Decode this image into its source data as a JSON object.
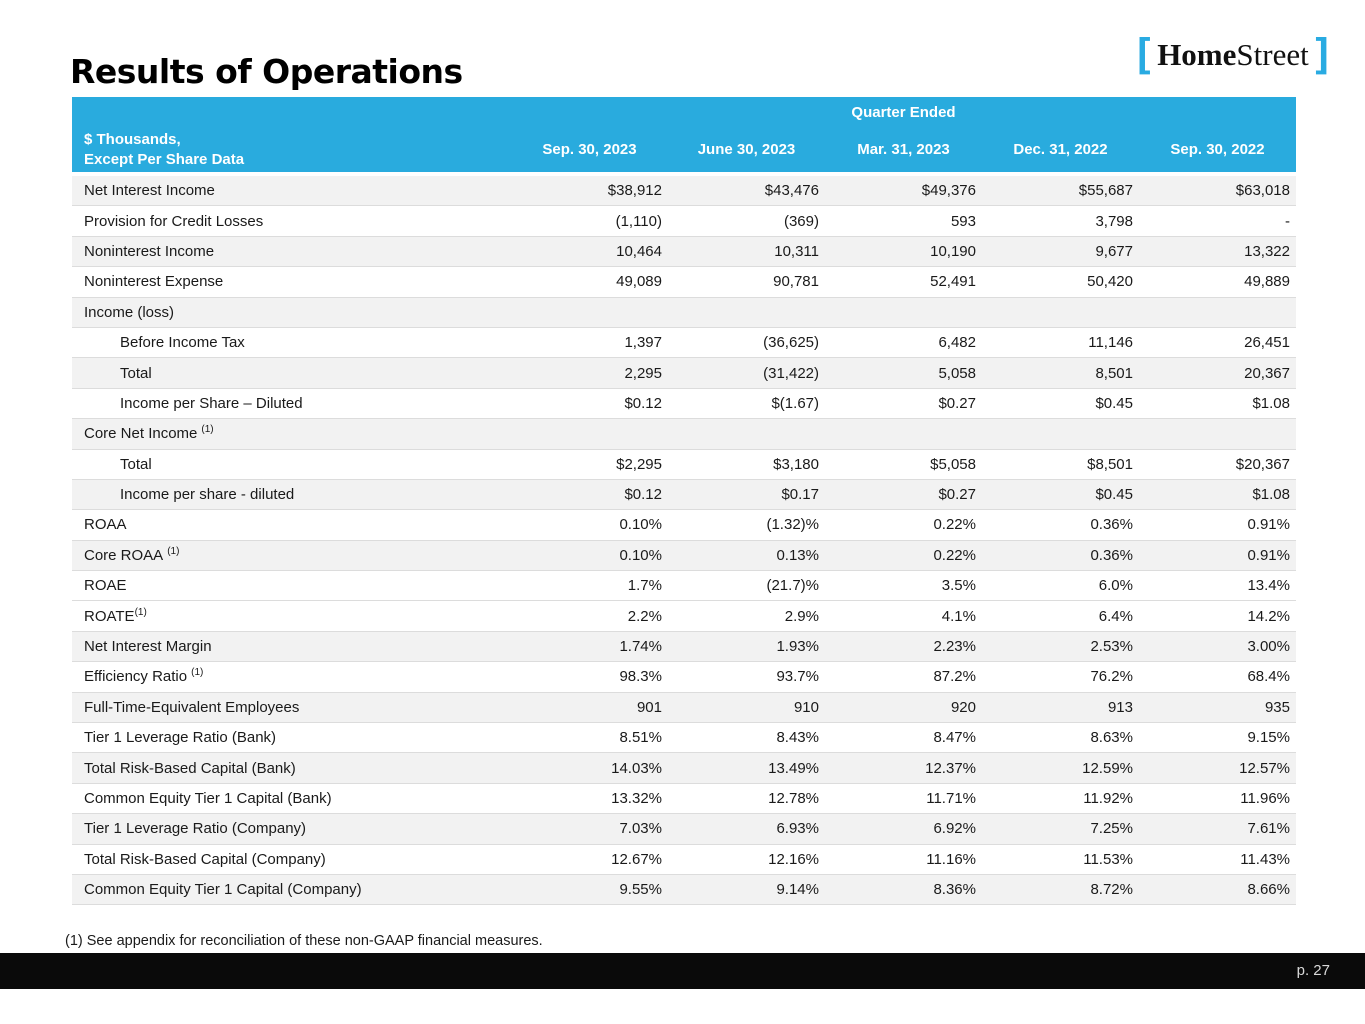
{
  "slide": {
    "title": "Results of Operations",
    "footnote": "(1) See appendix for reconciliation of these non-GAAP financial measures.",
    "page_number": "p. 27"
  },
  "logo": {
    "bracket_left": "[",
    "word_bold": "Home",
    "word_regular": "Street",
    "bracket_right": "]",
    "bracket_color": "#29ABE2"
  },
  "colors": {
    "header_bg": "#29ABDE",
    "accent": "#29ABE2",
    "row_shaded": "#F2F2F2",
    "row_divider": "#DCDCDC",
    "footer_bg": "#0A0A0A"
  },
  "table": {
    "group_header": "Quarter Ended",
    "corner_label_line1": "$ Thousands,",
    "corner_label_line2": "Except Per Share Data",
    "columns": [
      "Sep. 30, 2023",
      "June 30, 2023",
      "Mar. 31, 2023",
      "Dec. 31, 2022",
      "Sep. 30, 2022"
    ],
    "rows": [
      {
        "label": "Net Interest Income",
        "shaded": true,
        "values": [
          "$38,912",
          "$43,476",
          "$49,376",
          "$55,687",
          "$63,018"
        ]
      },
      {
        "label": "Provision for Credit Losses",
        "shaded": false,
        "values": [
          "(1,110)",
          "(369)",
          "593",
          "3,798",
          "-"
        ]
      },
      {
        "label": "Noninterest Income",
        "shaded": true,
        "values": [
          "10,464",
          "10,311",
          "10,190",
          "9,677",
          "13,322"
        ]
      },
      {
        "label": "Noninterest Expense",
        "shaded": false,
        "values": [
          "49,089",
          "90,781",
          "52,491",
          "50,420",
          "49,889"
        ]
      },
      {
        "label": "Income (loss)",
        "shaded": true,
        "section": true,
        "values": []
      },
      {
        "label": "Before Income Tax",
        "indent": true,
        "shaded": false,
        "values": [
          "1,397",
          "(36,625)",
          "6,482",
          "11,146",
          "26,451"
        ]
      },
      {
        "label": "Total",
        "indent": true,
        "shaded": true,
        "values": [
          "2,295",
          "(31,422)",
          "5,058",
          "8,501",
          "20,367"
        ]
      },
      {
        "label": "Income per Share – Diluted",
        "indent": true,
        "shaded": false,
        "values": [
          "$0.12",
          "$(1.67)",
          "$0.27",
          "$0.45",
          "$1.08"
        ]
      },
      {
        "label": "Core Net Income",
        "sup": "(1)",
        "sup_space": true,
        "shaded": true,
        "section": true,
        "values": []
      },
      {
        "label": "Total",
        "indent": true,
        "shaded": false,
        "values": [
          "$2,295",
          "$3,180",
          "$5,058",
          "$8,501",
          "$20,367"
        ]
      },
      {
        "label": "Income per share - diluted",
        "indent": true,
        "shaded": true,
        "values": [
          "$0.12",
          "$0.17",
          "$0.27",
          "$0.45",
          "$1.08"
        ]
      },
      {
        "label": "ROAA",
        "shaded": false,
        "values": [
          "0.10%",
          "(1.32)%",
          "0.22%",
          "0.36%",
          "0.91%"
        ]
      },
      {
        "label": "Core ROAA",
        "sup": "(1)",
        "sup_space": true,
        "shaded": true,
        "values": [
          "0.10%",
          "0.13%",
          "0.22%",
          "0.36%",
          "0.91%"
        ]
      },
      {
        "label": "ROAE",
        "shaded": false,
        "values": [
          "1.7%",
          "(21.7)%",
          "3.5%",
          "6.0%",
          "13.4%"
        ]
      },
      {
        "label": "ROATE",
        "sup": "(1)",
        "sup_space": false,
        "shaded": false,
        "values": [
          "2.2%",
          "2.9%",
          "4.1%",
          "6.4%",
          "14.2%"
        ]
      },
      {
        "label": "Net Interest Margin",
        "shaded": true,
        "values": [
          "1.74%",
          "1.93%",
          "2.23%",
          "2.53%",
          "3.00%"
        ]
      },
      {
        "label": "Efficiency Ratio",
        "sup": "(1)",
        "sup_space": true,
        "shaded": false,
        "values": [
          "98.3%",
          "93.7%",
          "87.2%",
          "76.2%",
          "68.4%"
        ]
      },
      {
        "label": "Full-Time-Equivalent Employees",
        "shaded": true,
        "values": [
          "901",
          "910",
          "920",
          "913",
          "935"
        ]
      },
      {
        "label": "Tier 1 Leverage Ratio (Bank)",
        "shaded": false,
        "values": [
          "8.51%",
          "8.43%",
          "8.47%",
          "8.63%",
          "9.15%"
        ]
      },
      {
        "label": "Total Risk-Based Capital (Bank)",
        "shaded": true,
        "values": [
          "14.03%",
          "13.49%",
          "12.37%",
          "12.59%",
          "12.57%"
        ]
      },
      {
        "label": "Common Equity Tier 1 Capital (Bank)",
        "shaded": false,
        "values": [
          "13.32%",
          "12.78%",
          "11.71%",
          "11.92%",
          "11.96%"
        ]
      },
      {
        "label": "Tier 1 Leverage Ratio (Company)",
        "shaded": true,
        "values": [
          "7.03%",
          "6.93%",
          "6.92%",
          "7.25%",
          "7.61%"
        ]
      },
      {
        "label": "Total Risk-Based Capital (Company)",
        "shaded": false,
        "values": [
          "12.67%",
          "12.16%",
          "11.16%",
          "11.53%",
          "11.43%"
        ]
      },
      {
        "label": "Common Equity Tier 1 Capital (Company)",
        "shaded": true,
        "values": [
          "9.55%",
          "9.14%",
          "8.36%",
          "8.72%",
          "8.66%"
        ]
      }
    ]
  }
}
